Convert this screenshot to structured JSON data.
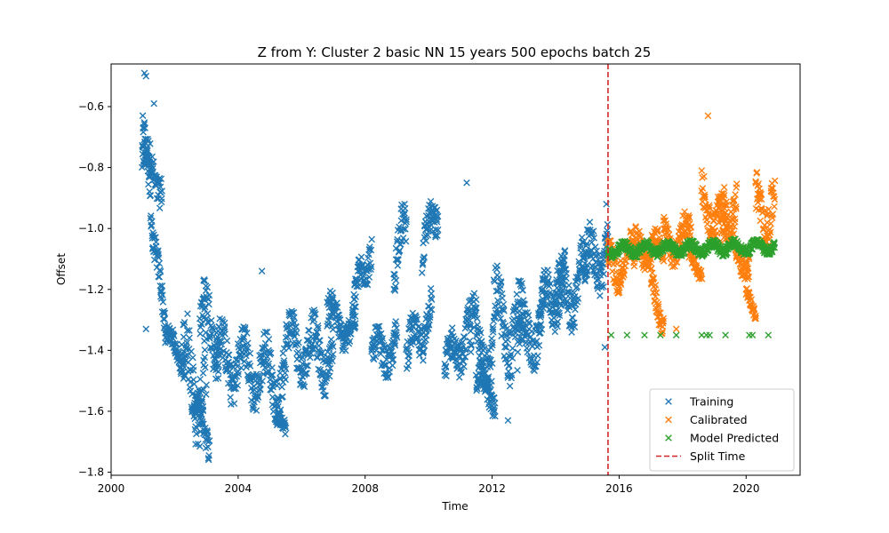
{
  "chart_data": {
    "type": "scatter",
    "title": "Z from Y: Cluster 2 basic NN 15 years 500 epochs batch 25",
    "xlabel": "Time",
    "ylabel": "Offset",
    "xlim": [
      2000.0,
      2021.7
    ],
    "ylim": [
      -1.81,
      -0.46
    ],
    "xticks": [
      2000,
      2004,
      2008,
      2012,
      2016,
      2020
    ],
    "xtick_labels": [
      "2000",
      "2004",
      "2008",
      "2012",
      "2016",
      "2020"
    ],
    "yticks": [
      -1.8,
      -1.6,
      -1.4,
      -1.2,
      -1.0,
      -0.8,
      -0.6
    ],
    "ytick_labels": [
      "−1.8",
      "−1.6",
      "−1.4",
      "−1.2",
      "−1.0",
      "−0.8",
      "−0.6"
    ],
    "grid": false,
    "legend_position": "lower-right",
    "split_time": 2015.65,
    "split_time_label": "Split Time",
    "series": [
      {
        "name": "Training",
        "color": "#1f77b4",
        "marker": "x",
        "segments": [
          {
            "x": [
              2000.97,
              2001.6
            ],
            "y_mid": [
              -0.78,
              -0.84
            ],
            "amp": 0.09
          },
          {
            "x": [
              2001.0,
              2001.3
            ],
            "y_mid": [
              -0.65,
              -1.05
            ],
            "amp": 0.1
          },
          {
            "x": [
              2001.3,
              2001.7
            ],
            "y_mid": [
              -1.05,
              -1.3
            ],
            "amp": 0.08
          },
          {
            "x": [
              2001.7,
              2002.3
            ],
            "y_mid": [
              -1.36,
              -1.42
            ],
            "amp": 0.05
          },
          {
            "x": [
              2002.2,
              2003.0
            ],
            "y_mid": [
              -1.48,
              -1.52
            ],
            "amp": 0.2
          },
          {
            "x": [
              2002.6,
              2003.1
            ],
            "y_mid": [
              -1.6,
              -1.68
            ],
            "amp": 0.08
          },
          {
            "x": [
              2002.8,
              2003.4
            ],
            "y_mid": [
              -1.3,
              -1.35
            ],
            "amp": 0.14
          },
          {
            "x": [
              2003.3,
              2005.5
            ],
            "y_mid": [
              -1.42,
              -1.5
            ],
            "amp": 0.13
          },
          {
            "x": [
              2005.2,
              2005.5
            ],
            "y_mid": [
              -1.63,
              -1.67
            ],
            "amp": 0.04
          },
          {
            "x": [
              2005.5,
              2007.0
            ],
            "y_mid": [
              -1.38,
              -1.42
            ],
            "amp": 0.12
          },
          {
            "x": [
              2006.8,
              2007.7
            ],
            "y_mid": [
              -1.28,
              -1.35
            ],
            "amp": 0.08
          },
          {
            "x": [
              2007.6,
              2008.2
            ],
            "y_mid": [
              -1.3,
              -1.02
            ],
            "amp": 0.1
          },
          {
            "x": [
              2008.2,
              2009.0
            ],
            "y_mid": [
              -1.43,
              -1.38
            ],
            "amp": 0.09
          },
          {
            "x": [
              2008.9,
              2009.3
            ],
            "y_mid": [
              -1.2,
              -0.95
            ],
            "amp": 0.12
          },
          {
            "x": [
              2009.3,
              2010.1
            ],
            "y_mid": [
              -1.43,
              -1.26
            ],
            "amp": 0.1
          },
          {
            "x": [
              2009.8,
              2010.3
            ],
            "y_mid": [
              -1.1,
              -0.92
            ],
            "amp": 0.1
          },
          {
            "x": [
              2010.5,
              2011.3
            ],
            "y_mid": [
              -1.47,
              -1.32
            ],
            "amp": 0.1
          },
          {
            "x": [
              2011.3,
              2012.0
            ],
            "y_mid": [
              -1.35,
              -1.42
            ],
            "amp": 0.15
          },
          {
            "x": [
              2011.5,
              2012.1
            ],
            "y_mid": [
              -1.5,
              -1.55
            ],
            "amp": 0.07
          },
          {
            "x": [
              2012.0,
              2013.0
            ],
            "y_mid": [
              -1.3,
              -1.35
            ],
            "amp": 0.17
          },
          {
            "x": [
              2012.8,
              2013.6
            ],
            "y_mid": [
              -1.4,
              -1.3
            ],
            "amp": 0.13
          },
          {
            "x": [
              2013.5,
              2014.3
            ],
            "y_mid": [
              -1.3,
              -1.15
            ],
            "amp": 0.12
          },
          {
            "x": [
              2014.0,
              2015.0
            ],
            "y_mid": [
              -1.25,
              -1.15
            ],
            "amp": 0.13
          },
          {
            "x": [
              2014.9,
              2015.65
            ],
            "y_mid": [
              -1.15,
              -1.05
            ],
            "amp": 0.13
          }
        ],
        "outliers": [
          {
            "x": 2001.05,
            "y": -0.49
          },
          {
            "x": 2001.1,
            "y": -0.5
          },
          {
            "x": 2001.35,
            "y": -0.59
          },
          {
            "x": 2004.75,
            "y": -1.14
          },
          {
            "x": 2011.2,
            "y": -0.85
          },
          {
            "x": 2012.5,
            "y": -1.63
          },
          {
            "x": 2015.55,
            "y": -1.39
          },
          {
            "x": 2015.6,
            "y": -0.92
          },
          {
            "x": 2001.1,
            "y": -1.33
          }
        ]
      },
      {
        "name": "Calibrated",
        "color": "#ff7f0e",
        "marker": "x",
        "segments": [
          {
            "x": [
              2015.65,
              2016.5
            ],
            "y_mid": [
              -1.12,
              -1.1
            ],
            "amp": 0.09
          },
          {
            "x": [
              2016.5,
              2017.4
            ],
            "y_mid": [
              -1.05,
              -1.08
            ],
            "amp": 0.07
          },
          {
            "x": [
              2017.0,
              2017.4
            ],
            "y_mid": [
              -1.2,
              -1.28
            ],
            "amp": 0.07
          },
          {
            "x": [
              2017.4,
              2018.3
            ],
            "y_mid": [
              -1.05,
              -1.02
            ],
            "amp": 0.08
          },
          {
            "x": [
              2018.2,
              2018.6
            ],
            "y_mid": [
              -1.1,
              -1.14
            ],
            "amp": 0.03
          },
          {
            "x": [
              2018.6,
              2019.4
            ],
            "y_mid": [
              -0.92,
              -0.98
            ],
            "amp": 0.1
          },
          {
            "x": [
              2019.2,
              2019.7
            ],
            "y_mid": [
              -1.05,
              -0.88
            ],
            "amp": 0.1
          },
          {
            "x": [
              2019.6,
              2020.1
            ],
            "y_mid": [
              -1.08,
              -1.12
            ],
            "amp": 0.06
          },
          {
            "x": [
              2020.0,
              2020.3
            ],
            "y_mid": [
              -1.22,
              -1.27
            ],
            "amp": 0.03
          },
          {
            "x": [
              2020.3,
              2020.9
            ],
            "y_mid": [
              -0.95,
              -0.92
            ],
            "amp": 0.13
          }
        ],
        "outliers": [
          {
            "x": 2018.8,
            "y": -0.63
          },
          {
            "x": 2017.8,
            "y": -1.33
          }
        ]
      },
      {
        "name": "Model Predicted",
        "color": "#2ca02c",
        "marker": "x",
        "segments": [
          {
            "x": [
              2015.65,
              2020.9
            ],
            "y_mid": [
              -1.07,
              -1.06
            ],
            "amp": 0.025
          }
        ],
        "outliers": [
          {
            "x": 2015.75,
            "y": -1.35
          },
          {
            "x": 2016.25,
            "y": -1.35
          },
          {
            "x": 2016.8,
            "y": -1.35
          },
          {
            "x": 2017.3,
            "y": -1.35
          },
          {
            "x": 2017.8,
            "y": -1.35
          },
          {
            "x": 2018.6,
            "y": -1.35
          },
          {
            "x": 2018.75,
            "y": -1.35
          },
          {
            "x": 2018.85,
            "y": -1.35
          },
          {
            "x": 2019.35,
            "y": -1.35
          },
          {
            "x": 2020.1,
            "y": -1.35
          },
          {
            "x": 2020.2,
            "y": -1.35
          },
          {
            "x": 2020.7,
            "y": -1.35
          }
        ]
      }
    ]
  }
}
